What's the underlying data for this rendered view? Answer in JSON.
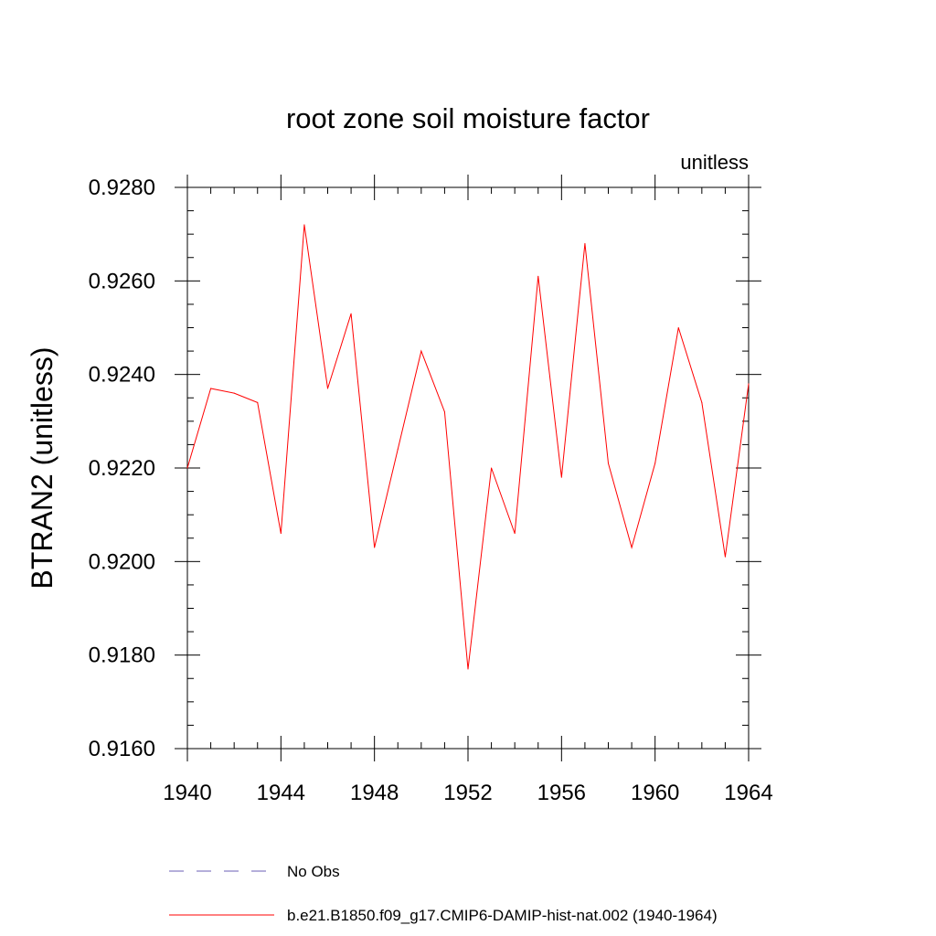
{
  "chart_data": {
    "type": "line",
    "title": "root zone soil moisture factor",
    "units_label": "unitless",
    "xlabel": "",
    "ylabel": "BTRAN2  (unitless)",
    "xlim": [
      1940,
      1964
    ],
    "ylim": [
      0.916,
      0.928
    ],
    "x_ticks": [
      "1940",
      "1944",
      "1948",
      "1952",
      "1956",
      "1960",
      "1964"
    ],
    "y_ticks": [
      "0.9160",
      "0.9180",
      "0.9200",
      "0.9220",
      "0.9240",
      "0.9260",
      "0.9280"
    ],
    "grid": false,
    "legend_position": "bottom",
    "x": [
      1940,
      1941,
      1942,
      1943,
      1944,
      1945,
      1946,
      1947,
      1948,
      1949,
      1950,
      1951,
      1952,
      1953,
      1954,
      1955,
      1956,
      1957,
      1958,
      1959,
      1960,
      1961,
      1962,
      1963,
      1964
    ],
    "series": [
      {
        "name": "b.e21.B1850.f09_g17.CMIP6-DAMIP-hist-nat.002 (1940-1964)",
        "color": "#ff0000",
        "style": "solid",
        "values": [
          0.922,
          0.9237,
          0.9236,
          0.9234,
          0.9206,
          0.9272,
          0.9237,
          0.9253,
          0.9203,
          0.9224,
          0.9245,
          0.9232,
          0.9177,
          0.922,
          0.9206,
          0.9261,
          0.9218,
          0.9268,
          0.9221,
          0.9203,
          0.9221,
          0.925,
          0.9234,
          0.9201,
          0.9238
        ]
      }
    ],
    "legend": [
      {
        "label": "No Obs",
        "color": "#6b5fb5",
        "style": "dashed"
      },
      {
        "label": "b.e21.B1850.f09_g17.CMIP6-DAMIP-hist-nat.002 (1940-1964)",
        "color": "#ff0000",
        "style": "solid"
      }
    ]
  }
}
